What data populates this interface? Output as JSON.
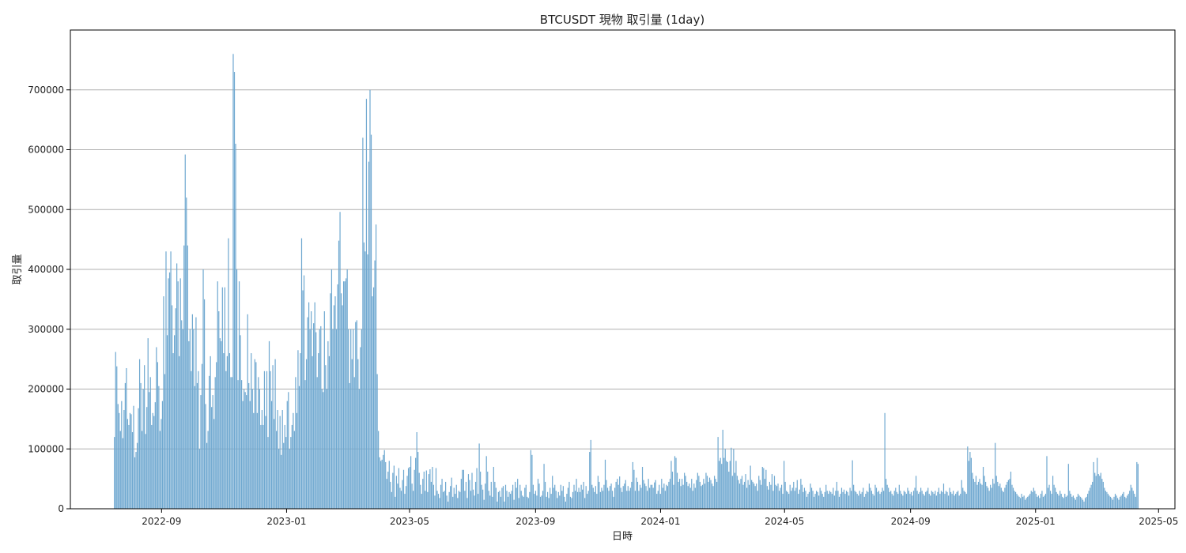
{
  "chart_data": {
    "type": "bar",
    "title": "BTCUSDT 現物 取引量 (1day)",
    "xlabel": "日時",
    "ylabel": "取引量",
    "bar_color": "#6fa8d0",
    "grid": "y",
    "ylim": [
      0,
      800000
    ],
    "xlim": [
      "2022-06-04",
      "2025-05-17"
    ],
    "x_ticks": [
      "2022-09",
      "2023-01",
      "2023-05",
      "2023-09",
      "2024-01",
      "2024-05",
      "2024-09",
      "2025-01",
      "2025-05"
    ],
    "y_ticks": [
      0,
      100000,
      200000,
      300000,
      400000,
      500000,
      600000,
      700000
    ],
    "x_start": "2022-07-17",
    "x_end": "2025-04-11",
    "bar_interval_days": 1,
    "values": [
      120000,
      262000,
      238000,
      175000,
      160000,
      130000,
      180000,
      118000,
      165000,
      210000,
      235000,
      150000,
      140000,
      160000,
      158000,
      128000,
      172000,
      86000,
      95000,
      110000,
      168000,
      250000,
      210000,
      130000,
      200000,
      240000,
      125000,
      170000,
      285000,
      195000,
      220000,
      140000,
      160000,
      155000,
      178000,
      270000,
      245000,
      205000,
      130000,
      150000,
      180000,
      355000,
      225000,
      430000,
      290000,
      385000,
      395000,
      430000,
      340000,
      260000,
      290000,
      335000,
      410000,
      380000,
      255000,
      385000,
      315000,
      300000,
      440000,
      592000,
      520000,
      440000,
      280000,
      300000,
      230000,
      325000,
      300000,
      205000,
      320000,
      210000,
      230000,
      100000,
      190000,
      242000,
      400000,
      350000,
      175000,
      110000,
      130000,
      222000,
      255000,
      170000,
      190000,
      150000,
      220000,
      245000,
      380000,
      330000,
      285000,
      280000,
      370000,
      260000,
      370000,
      230000,
      255000,
      452000,
      260000,
      220000,
      220000,
      760000,
      730000,
      610000,
      400000,
      215000,
      380000,
      290000,
      215000,
      180000,
      200000,
      195000,
      190000,
      325000,
      210000,
      180000,
      260000,
      200000,
      160000,
      250000,
      245000,
      160000,
      220000,
      200000,
      140000,
      165000,
      140000,
      230000,
      155000,
      230000,
      120000,
      280000,
      230000,
      180000,
      240000,
      150000,
      250000,
      130000,
      165000,
      100000,
      155000,
      90000,
      165000,
      110000,
      140000,
      120000,
      180000,
      195000,
      100000,
      120000,
      140000,
      160000,
      130000,
      220000,
      160000,
      265000,
      205000,
      260000,
      452000,
      365000,
      390000,
      215000,
      250000,
      320000,
      345000,
      300000,
      330000,
      255000,
      310000,
      345000,
      295000,
      220000,
      260000,
      300000,
      305000,
      200000,
      195000,
      330000,
      240000,
      200000,
      280000,
      255000,
      360000,
      400000,
      300000,
      340000,
      355000,
      300000,
      375000,
      448000,
      496000,
      360000,
      340000,
      380000,
      380000,
      385000,
      400000,
      300000,
      210000,
      300000,
      250000,
      300000,
      220000,
      312000,
      315000,
      250000,
      200000,
      270000,
      300000,
      620000,
      445000,
      430000,
      685000,
      425000,
      580000,
      700000,
      625000,
      355000,
      370000,
      415000,
      475000,
      225000,
      130000,
      86000,
      80000,
      82000,
      90000,
      98000,
      78000,
      50000,
      62000,
      80000,
      45000,
      28000,
      60000,
      72000,
      20000,
      55000,
      42000,
      68000,
      35000,
      30000,
      48000,
      65000,
      25000,
      38000,
      55000,
      68000,
      70000,
      88000,
      42000,
      30000,
      65000,
      85000,
      128000,
      95000,
      60000,
      40000,
      25000,
      50000,
      62000,
      30000,
      64000,
      28000,
      58000,
      66000,
      45000,
      70000,
      40000,
      22000,
      68000,
      30000,
      25000,
      18000,
      40000,
      50000,
      28000,
      30000,
      45000,
      22000,
      12000,
      28000,
      38000,
      52000,
      20000,
      35000,
      25000,
      40000,
      18000,
      30000,
      28000,
      50000,
      65000,
      65000,
      30000,
      45000,
      18000,
      58000,
      48000,
      30000,
      60000,
      32000,
      22000,
      45000,
      68000,
      25000,
      109000,
      62000,
      40000,
      32000,
      15000,
      42000,
      88000,
      62000,
      30000,
      22000,
      45000,
      20000,
      70000,
      45000,
      35000,
      12000,
      28000,
      30000,
      20000,
      35000,
      38000,
      12000,
      40000,
      30000,
      20000,
      28000,
      25000,
      30000,
      40000,
      15000,
      45000,
      35000,
      50000,
      18000,
      40000,
      30000,
      22000,
      20000,
      35000,
      40000,
      20000,
      18000,
      28000,
      98000,
      90000,
      40000,
      25000,
      30000,
      22000,
      50000,
      42000,
      20000,
      22000,
      30000,
      75000,
      45000,
      20000,
      28000,
      18000,
      35000,
      25000,
      55000,
      35000,
      40000,
      30000,
      18000,
      28000,
      22000,
      40000,
      30000,
      38000,
      20000,
      12000,
      25000,
      35000,
      45000,
      20000,
      18000,
      28000,
      40000,
      30000,
      50000,
      28000,
      35000,
      28000,
      40000,
      32000,
      45000,
      18000,
      38000,
      25000,
      30000,
      95000,
      115000,
      40000,
      35000,
      28000,
      38000,
      25000,
      55000,
      45000,
      28000,
      35000,
      30000,
      40000,
      82000,
      48000,
      35000,
      30000,
      38000,
      42000,
      30000,
      20000,
      35000,
      45000,
      50000,
      40000,
      54000,
      35000,
      28000,
      38000,
      42000,
      48000,
      30000,
      38000,
      30000,
      35000,
      45000,
      78000,
      65000,
      30000,
      52000,
      45000,
      30000,
      40000,
      35000,
      70000,
      48000,
      42000,
      38000,
      30000,
      50000,
      35000,
      40000,
      40000,
      35000,
      44000,
      48000,
      25000,
      30000,
      40000,
      25000,
      50000,
      35000,
      42000,
      30000,
      40000,
      38000,
      45000,
      50000,
      80000,
      62000,
      40000,
      88000,
      85000,
      60000,
      45000,
      50000,
      38000,
      50000,
      40000,
      60000,
      55000,
      45000,
      38000,
      42000,
      35000,
      50000,
      30000,
      42000,
      35000,
      48000,
      60000,
      55000,
      45000,
      38000,
      40000,
      50000,
      42000,
      60000,
      55000,
      45000,
      52000,
      48000,
      42000,
      38000,
      55000,
      50000,
      45000,
      120000,
      80000,
      85000,
      75000,
      132000,
      85000,
      100000,
      80000,
      78000,
      62000,
      80000,
      102000,
      55000,
      100000,
      60000,
      80000,
      55000,
      48000,
      42000,
      50000,
      55000,
      40000,
      45000,
      58000,
      35000,
      48000,
      40000,
      72000,
      48000,
      45000,
      42000,
      38000,
      42000,
      30000,
      55000,
      48000,
      40000,
      70000,
      68000,
      50000,
      65000,
      38000,
      32000,
      45000,
      40000,
      58000,
      30000,
      55000,
      40000,
      38000,
      42000,
      30000,
      35000,
      40000,
      25000,
      80000,
      45000,
      30000,
      28000,
      25000,
      40000,
      30000,
      35000,
      45000,
      30000,
      35000,
      48000,
      25000,
      32000,
      50000,
      40000,
      28000,
      35000,
      30000,
      20000,
      25000,
      28000,
      42000,
      35000,
      30000,
      20000,
      25000,
      30000,
      28000,
      22000,
      35000,
      30000,
      25000,
      20000,
      28000,
      40000,
      30000,
      25000,
      30000,
      28000,
      25000,
      35000,
      22000,
      30000,
      45000,
      30000,
      20000,
      25000,
      35000,
      28000,
      32000,
      25000,
      30000,
      28000,
      22000,
      35000,
      30000,
      81000,
      40000,
      30000,
      28000,
      25000,
      22000,
      30000,
      25000,
      28000,
      35000,
      20000,
      25000,
      30000,
      28000,
      42000,
      35000,
      30000,
      25000,
      22000,
      40000,
      35000,
      28000,
      30000,
      25000,
      28000,
      35000,
      30000,
      160000,
      50000,
      40000,
      35000,
      28000,
      30000,
      25000,
      22000,
      30000,
      35000,
      28000,
      25000,
      40000,
      30000,
      25000,
      22000,
      30000,
      28000,
      25000,
      35000,
      30000,
      25000,
      28000,
      22000,
      30000,
      35000,
      55000,
      30000,
      25000,
      28000,
      35000,
      30000,
      25000,
      22000,
      28000,
      30000,
      35000,
      25000,
      22000,
      30000,
      28000,
      25000,
      30000,
      22000,
      28000,
      35000,
      25000,
      30000,
      28000,
      42000,
      25000,
      30000,
      28000,
      22000,
      35000,
      28000,
      25000,
      30000,
      22000,
      25000,
      28000,
      30000,
      22000,
      25000,
      48000,
      35000,
      30000,
      28000,
      25000,
      104000,
      80000,
      95000,
      85000,
      60000,
      50000,
      45000,
      55000,
      40000,
      45000,
      50000,
      42000,
      40000,
      70000,
      55000,
      45000,
      38000,
      35000,
      30000,
      40000,
      35000,
      50000,
      42000,
      110000,
      55000,
      45000,
      38000,
      42000,
      35000,
      30000,
      28000,
      35000,
      40000,
      45000,
      48000,
      50000,
      62000,
      40000,
      35000,
      30000,
      28000,
      25000,
      22000,
      20000,
      18000,
      25000,
      20000,
      22000,
      15000,
      18000,
      20000,
      22000,
      25000,
      30000,
      28000,
      35000,
      30000,
      25000,
      20000,
      22000,
      18000,
      25000,
      30000,
      20000,
      22000,
      25000,
      88000,
      35000,
      40000,
      30000,
      25000,
      55000,
      40000,
      35000,
      28000,
      25000,
      22000,
      30000,
      25000,
      20000,
      18000,
      25000,
      20000,
      22000,
      75000,
      30000,
      25000,
      20000,
      22000,
      18000,
      15000,
      20000,
      25000,
      22000,
      20000,
      18000,
      15000,
      12000,
      18000,
      20000,
      25000,
      30000,
      35000,
      40000,
      45000,
      78000,
      60000,
      55000,
      85000,
      58000,
      55000,
      60000,
      50000,
      45000,
      35000,
      30000,
      28000,
      25000,
      22000,
      20000,
      18000,
      15000,
      20000,
      25000,
      22000,
      18000,
      15000,
      20000,
      22000,
      25000,
      28000,
      20000,
      18000,
      22000,
      25000,
      30000,
      40000,
      35000,
      30000,
      25000,
      20000,
      78000,
      75000
    ]
  }
}
